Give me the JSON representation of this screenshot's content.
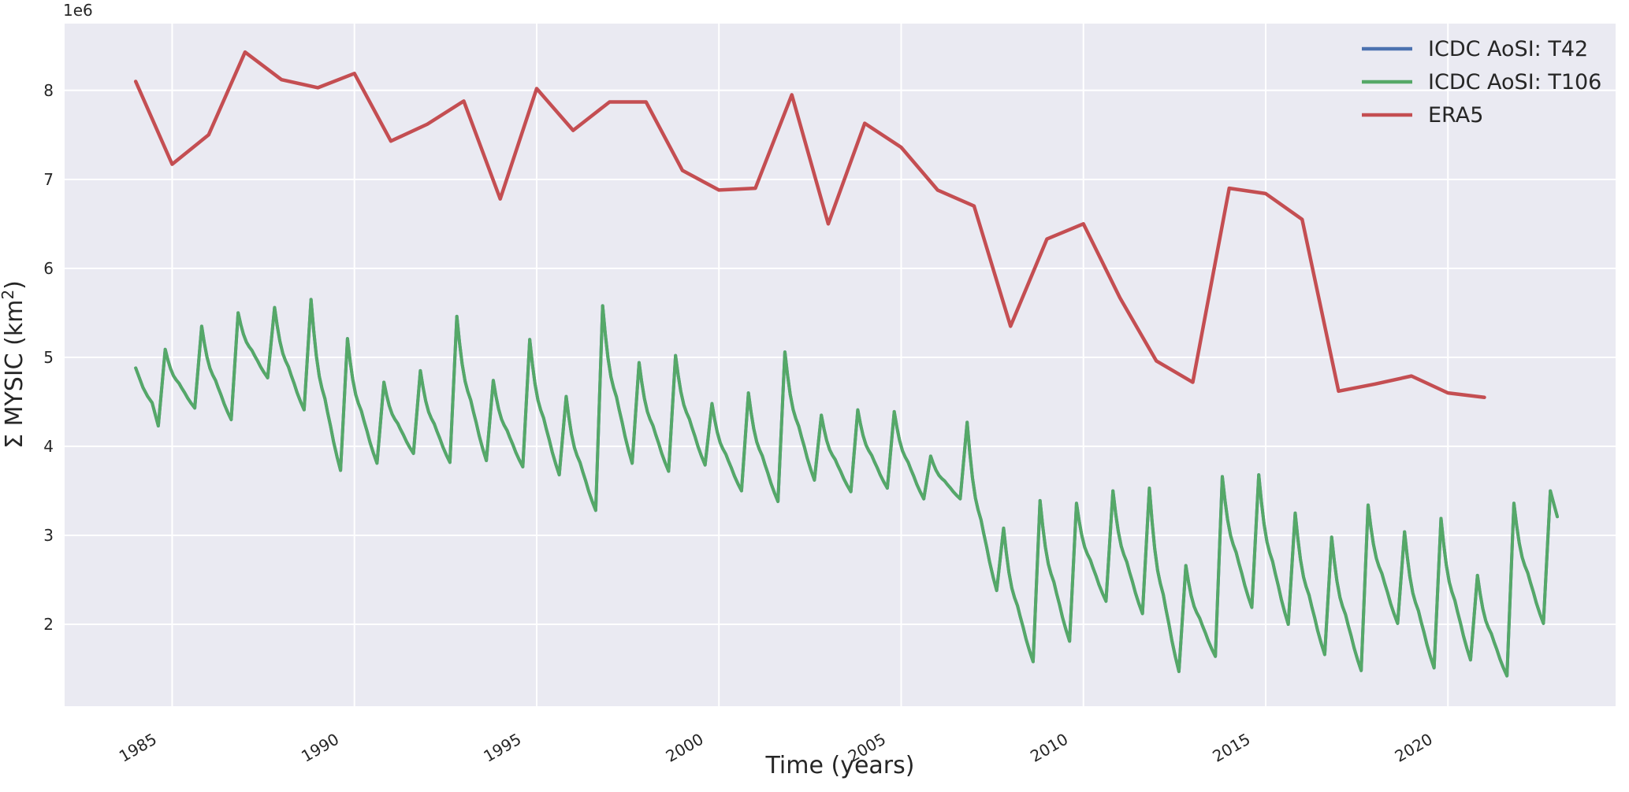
{
  "figure": {
    "background": "#ffffff",
    "axes_background": "#eaeaf2",
    "grid_color": "#ffffff",
    "text_color": "#262626"
  },
  "chart_data": {
    "type": "line",
    "title": "",
    "xlabel": "Time (years)",
    "ylabel": "Σ MYSIC (km²)",
    "ylabel_parts": {
      "main": "Σ MYSIC (km",
      "sup": "2",
      "close": ")"
    },
    "y_offset_text": "1e6",
    "y_unit": "1e6 km²",
    "grid": true,
    "legend_position": "upper right",
    "xlim": [
      1982.05,
      2024.6
    ],
    "ylim": [
      1.08,
      8.75
    ],
    "x_ticks": [
      1985,
      1990,
      1995,
      2000,
      2005,
      2010,
      2015,
      2020
    ],
    "x_tick_labels": [
      "1985",
      "1990",
      "1995",
      "2000",
      "2005",
      "2010",
      "2015",
      "2020"
    ],
    "y_ticks": [
      2,
      3,
      4,
      5,
      6,
      7,
      8
    ],
    "y_tick_labels": [
      "2",
      "3",
      "4",
      "5",
      "6",
      "7",
      "8"
    ],
    "series": [
      {
        "name": "ICDC AoSI: T42",
        "color": "#4c72b0",
        "style": "monthly-seasonal",
        "note": "coincides with ICDC AoSI: T106 and is completely hidden beneath it"
      },
      {
        "name": "ICDC AoSI: T106",
        "color": "#55a868",
        "style": "monthly-seasonal",
        "min_time_frac": 0.62,
        "peak_time_frac": 0.81,
        "lead_in": [
          [
            1984.0,
            4.88
          ],
          [
            1984.2,
            4.66
          ],
          [
            1984.33,
            4.56
          ],
          [
            1984.45,
            4.49
          ],
          [
            1984.62,
            4.23
          ]
        ],
        "cycles": [
          {
            "year": 1984,
            "sep_min": 4.23,
            "autumn_peak": 5.09
          },
          {
            "year": 1985,
            "sep_min": 4.43,
            "autumn_peak": 5.35
          },
          {
            "year": 1986,
            "sep_min": 4.3,
            "autumn_peak": 5.5
          },
          {
            "year": 1987,
            "sep_min": 4.77,
            "autumn_peak": 5.56
          },
          {
            "year": 1988,
            "sep_min": 4.41,
            "autumn_peak": 5.65
          },
          {
            "year": 1989,
            "sep_min": 3.73,
            "autumn_peak": 5.21
          },
          {
            "year": 1990,
            "sep_min": 3.81,
            "autumn_peak": 4.72
          },
          {
            "year": 1991,
            "sep_min": 3.92,
            "autumn_peak": 4.85
          },
          {
            "year": 1992,
            "sep_min": 3.82,
            "autumn_peak": 5.46
          },
          {
            "year": 1993,
            "sep_min": 3.84,
            "autumn_peak": 4.74
          },
          {
            "year": 1994,
            "sep_min": 3.77,
            "autumn_peak": 5.2
          },
          {
            "year": 1995,
            "sep_min": 3.68,
            "autumn_peak": 4.56
          },
          {
            "year": 1996,
            "sep_min": 3.28,
            "autumn_peak": 5.58
          },
          {
            "year": 1997,
            "sep_min": 3.81,
            "autumn_peak": 4.94
          },
          {
            "year": 1998,
            "sep_min": 3.72,
            "autumn_peak": 5.02
          },
          {
            "year": 1999,
            "sep_min": 3.79,
            "autumn_peak": 4.48
          },
          {
            "year": 2000,
            "sep_min": 3.5,
            "autumn_peak": 4.6
          },
          {
            "year": 2001,
            "sep_min": 3.38,
            "autumn_peak": 5.06
          },
          {
            "year": 2002,
            "sep_min": 3.62,
            "autumn_peak": 4.35
          },
          {
            "year": 2003,
            "sep_min": 3.49,
            "autumn_peak": 4.41
          },
          {
            "year": 2004,
            "sep_min": 3.53,
            "autumn_peak": 4.39
          },
          {
            "year": 2005,
            "sep_min": 3.41,
            "autumn_peak": 3.89
          },
          {
            "year": 2006,
            "sep_min": 3.41,
            "autumn_peak": 4.27
          },
          {
            "year": 2007,
            "sep_min": 2.38,
            "autumn_peak": 3.08
          },
          {
            "year": 2008,
            "sep_min": 1.58,
            "autumn_peak": 3.39
          },
          {
            "year": 2009,
            "sep_min": 1.81,
            "autumn_peak": 3.36
          },
          {
            "year": 2010,
            "sep_min": 2.26,
            "autumn_peak": 3.5
          },
          {
            "year": 2011,
            "sep_min": 2.12,
            "autumn_peak": 3.53
          },
          {
            "year": 2012,
            "sep_min": 1.47,
            "autumn_peak": 2.66
          },
          {
            "year": 2013,
            "sep_min": 1.64,
            "autumn_peak": 3.66
          },
          {
            "year": 2014,
            "sep_min": 2.19,
            "autumn_peak": 3.68
          },
          {
            "year": 2015,
            "sep_min": 2.0,
            "autumn_peak": 3.25
          },
          {
            "year": 2016,
            "sep_min": 1.66,
            "autumn_peak": 2.98
          },
          {
            "year": 2017,
            "sep_min": 1.48,
            "autumn_peak": 3.34
          },
          {
            "year": 2018,
            "sep_min": 2.01,
            "autumn_peak": 3.04
          },
          {
            "year": 2019,
            "sep_min": 1.51,
            "autumn_peak": 3.19
          },
          {
            "year": 2020,
            "sep_min": 1.6,
            "autumn_peak": 2.55
          },
          {
            "year": 2021,
            "sep_min": 1.42,
            "autumn_peak": 3.36
          },
          {
            "year": 2022,
            "sep_min": 2.01,
            "autumn_peak": 3.5
          }
        ],
        "tail_out": [
          [
            2022.92,
            3.33
          ],
          [
            2023.0,
            3.21
          ]
        ],
        "decay_shape": [
          [
            0,
            0
          ],
          [
            0.09,
            0.18
          ],
          [
            0.18,
            0.33
          ],
          [
            0.28,
            0.45
          ],
          [
            0.37,
            0.52
          ],
          [
            0.47,
            0.58
          ],
          [
            0.56,
            0.66
          ],
          [
            0.66,
            0.74
          ],
          [
            0.76,
            0.83
          ],
          [
            0.88,
            0.92
          ],
          [
            1,
            1
          ]
        ]
      },
      {
        "name": "ERA5",
        "color": "#c44e52",
        "style": "annual",
        "years": [
          1984,
          1985,
          1986,
          1987,
          1988,
          1989,
          1990,
          1991,
          1992,
          1993,
          1994,
          1995,
          1996,
          1997,
          1998,
          1999,
          2000,
          2001,
          2002,
          2003,
          2004,
          2005,
          2006,
          2007,
          2008,
          2009,
          2010,
          2011,
          2012,
          2013,
          2014,
          2015,
          2016,
          2017,
          2018,
          2019,
          2020,
          2021
        ],
        "values": [
          8.1,
          7.17,
          7.5,
          8.43,
          8.12,
          8.03,
          8.19,
          7.43,
          7.62,
          7.88,
          6.78,
          8.02,
          7.55,
          7.87,
          7.87,
          7.1,
          6.88,
          6.9,
          7.95,
          6.5,
          7.63,
          7.36,
          6.88,
          6.7,
          5.35,
          6.33,
          6.5,
          5.67,
          4.96,
          4.72,
          6.9,
          6.84,
          6.55,
          4.62,
          4.7,
          4.79,
          4.6,
          4.55
        ]
      }
    ]
  },
  "legend": {
    "items": [
      {
        "label": "ICDC AoSI: T42",
        "color": "#4c72b0"
      },
      {
        "label": "ICDC AoSI: T106",
        "color": "#55a868"
      },
      {
        "label": "ERA5",
        "color": "#c44e52"
      }
    ]
  }
}
